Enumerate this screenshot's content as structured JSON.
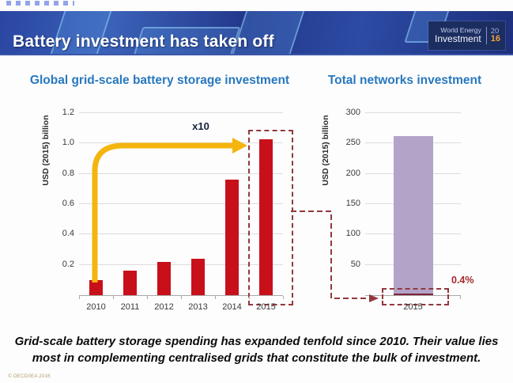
{
  "header": {
    "title": "Battery investment has taken off",
    "logo": {
      "brand_line1": "World Energy",
      "brand_line2": "Investment",
      "year_top": "20",
      "year_bottom": "16"
    }
  },
  "chart_data": [
    {
      "type": "bar",
      "title": "Global grid-scale battery storage investment",
      "ylabel": "USD (2015) billion",
      "categories": [
        "2010",
        "2011",
        "2012",
        "2013",
        "2014",
        "2015"
      ],
      "values": [
        0.1,
        0.16,
        0.22,
        0.24,
        0.76,
        1.03
      ],
      "ylim": [
        0,
        1.2
      ],
      "yticks": [
        0.2,
        0.4,
        0.6,
        0.8,
        1.0,
        1.2
      ],
      "ytick_labels": [
        "0.2",
        "0.4",
        "0.6",
        "0.8",
        "1.0",
        "1.2"
      ],
      "grid": true,
      "legend": "none",
      "bar_color": "#c8101b",
      "annotation_label": "x10",
      "annotation_note": "yellow arrow from 2010 bar up to 2015 level; 2015 bar outlined with dashed box"
    },
    {
      "type": "bar",
      "title": "Total networks investment",
      "ylabel": "USD (2015) billion",
      "categories": [
        "2015"
      ],
      "values": [
        262
      ],
      "ylim": [
        0,
        300
      ],
      "yticks": [
        50,
        100,
        150,
        200,
        250,
        300
      ],
      "ytick_labels": [
        "50",
        "100",
        "150",
        "200",
        "250",
        "300"
      ],
      "grid": true,
      "legend": "none",
      "bar_color": "#b3a3c8",
      "battery_sliver_color": "#7e2438",
      "annotation_label": "0.4%",
      "annotation_note": "dashed connector from left chart 2015 box points to thin battery share at base of bar"
    }
  ],
  "caption": {
    "line1": "Grid-scale battery storage spending has expanded tenfold since 2010. Their value lies",
    "line2": "most in complementing centralised grids that constitute the bulk of investment."
  },
  "footer": {
    "copyright": "© OECD/IEA 2016"
  },
  "colors": {
    "header_navy": "#24418f",
    "title_blue": "#2878be",
    "bar_red": "#c8101b",
    "bar_purple": "#b3a3c8",
    "dashed_maroon": "#92383d",
    "arrow_gold": "#f3b50e"
  }
}
